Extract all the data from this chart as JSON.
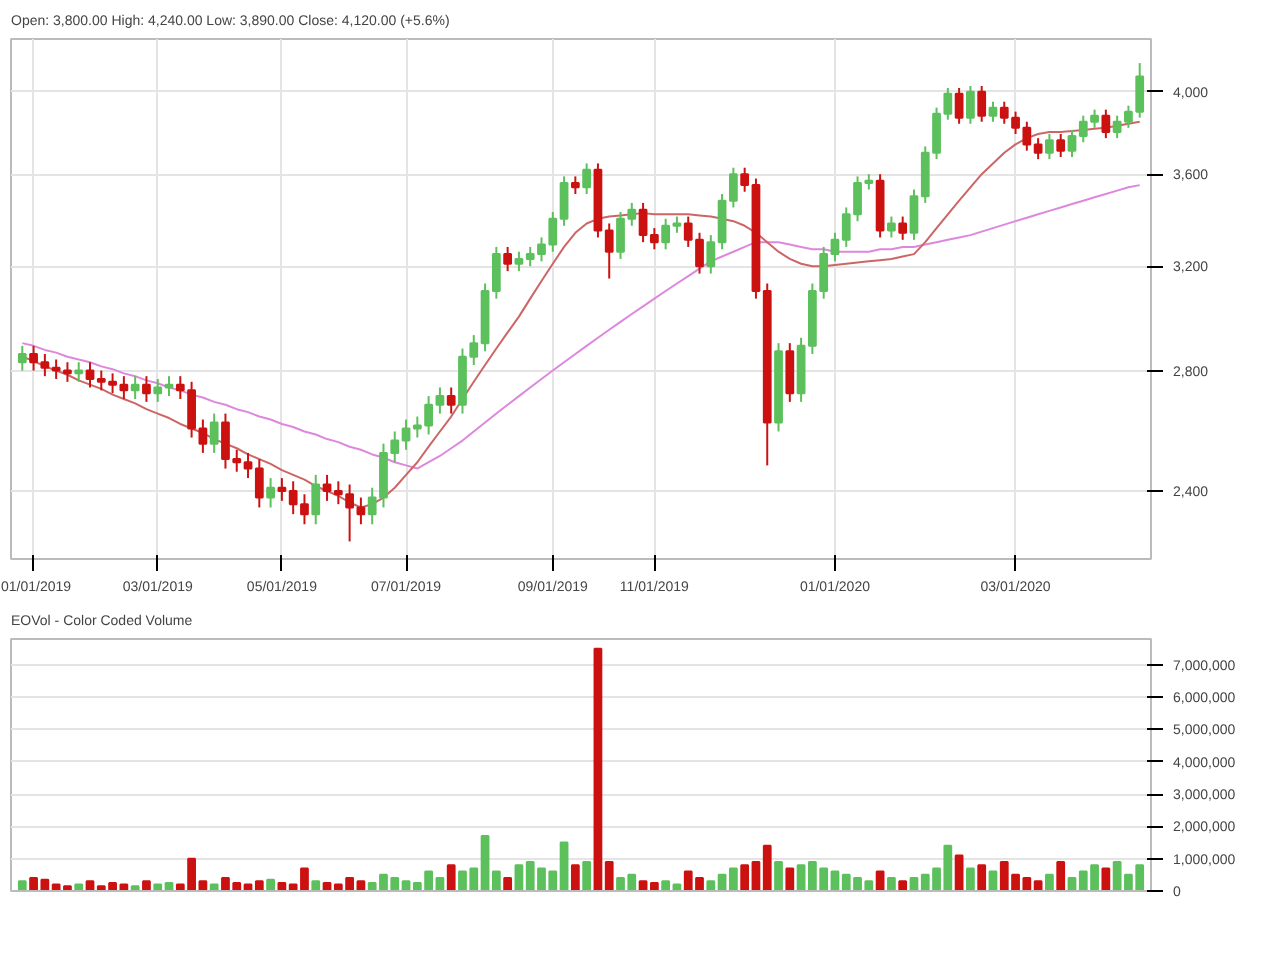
{
  "chart_data": [
    {
      "type": "candlestick",
      "annotations": [
        "Open: 3,800.00  High: 4,240.00  Low: 3,890.00  Close: 4,120.00 (+5.6%)"
      ],
      "categories": [
        null,
        "01/01/2019",
        null,
        null,
        null,
        null,
        null,
        null,
        null,
        null,
        null,
        null,
        "03/01/2019",
        null,
        null,
        null,
        null,
        null,
        null,
        null,
        null,
        null,
        null,
        "05/01/2019",
        null,
        null,
        null,
        null,
        null,
        null,
        null,
        null,
        null,
        null,
        "07/01/2019",
        null,
        null,
        null,
        null,
        null,
        null,
        null,
        null,
        null,
        null,
        null,
        null,
        "09/01/2019",
        null,
        null,
        null,
        null,
        null,
        null,
        null,
        null,
        "11/01/2019",
        null,
        null,
        null,
        null,
        null,
        null,
        null,
        null,
        null,
        null,
        null,
        null,
        null,
        null,
        null,
        "01/01/2020",
        null,
        null,
        null,
        null,
        null,
        null,
        null,
        null,
        null,
        null,
        null,
        null,
        null,
        null,
        null,
        "03/01/2020",
        null,
        null,
        null,
        null,
        null,
        null,
        null,
        null,
        null,
        null,
        null
      ],
      "ohlc": [
        [
          2830,
          2890,
          2800,
          2860
        ],
        [
          2860,
          2890,
          2800,
          2830
        ],
        [
          2830,
          2860,
          2780,
          2810
        ],
        [
          2810,
          2840,
          2770,
          2800
        ],
        [
          2800,
          2830,
          2760,
          2790
        ],
        [
          2790,
          2830,
          2760,
          2800
        ],
        [
          2800,
          2830,
          2740,
          2770
        ],
        [
          2770,
          2800,
          2730,
          2760
        ],
        [
          2760,
          2790,
          2720,
          2750
        ],
        [
          2750,
          2780,
          2700,
          2730
        ],
        [
          2730,
          2780,
          2700,
          2750
        ],
        [
          2750,
          2780,
          2690,
          2720
        ],
        [
          2720,
          2770,
          2690,
          2740
        ],
        [
          2740,
          2780,
          2710,
          2750
        ],
        [
          2750,
          2780,
          2700,
          2730
        ],
        [
          2730,
          2760,
          2570,
          2600
        ],
        [
          2600,
          2630,
          2520,
          2550
        ],
        [
          2550,
          2650,
          2520,
          2620
        ],
        [
          2620,
          2650,
          2470,
          2500
        ],
        [
          2500,
          2530,
          2460,
          2490
        ],
        [
          2490,
          2520,
          2440,
          2470
        ],
        [
          2470,
          2500,
          2350,
          2380
        ],
        [
          2380,
          2440,
          2350,
          2410
        ],
        [
          2410,
          2440,
          2370,
          2400
        ],
        [
          2400,
          2430,
          2330,
          2360
        ],
        [
          2360,
          2390,
          2300,
          2330
        ],
        [
          2330,
          2450,
          2300,
          2420
        ],
        [
          2420,
          2450,
          2370,
          2400
        ],
        [
          2400,
          2430,
          2360,
          2390
        ],
        [
          2390,
          2420,
          2250,
          2350
        ],
        [
          2350,
          2380,
          2300,
          2330
        ],
        [
          2330,
          2410,
          2300,
          2380
        ],
        [
          2380,
          2550,
          2350,
          2520
        ],
        [
          2520,
          2590,
          2490,
          2560
        ],
        [
          2560,
          2630,
          2530,
          2600
        ],
        [
          2600,
          2640,
          2570,
          2610
        ],
        [
          2610,
          2710,
          2580,
          2680
        ],
        [
          2680,
          2740,
          2650,
          2710
        ],
        [
          2710,
          2740,
          2650,
          2680
        ],
        [
          2680,
          2880,
          2650,
          2850
        ],
        [
          2850,
          2930,
          2820,
          2900
        ],
        [
          2900,
          3130,
          2870,
          3100
        ],
        [
          3100,
          3280,
          3070,
          3250
        ],
        [
          3250,
          3280,
          3180,
          3210
        ],
        [
          3210,
          3260,
          3180,
          3230
        ],
        [
          3230,
          3280,
          3200,
          3250
        ],
        [
          3250,
          3320,
          3220,
          3290
        ],
        [
          3290,
          3430,
          3260,
          3400
        ],
        [
          3400,
          3590,
          3370,
          3560
        ],
        [
          3560,
          3590,
          3510,
          3540
        ],
        [
          3540,
          3650,
          3510,
          3620
        ],
        [
          3620,
          3650,
          3320,
          3350
        ],
        [
          3350,
          3380,
          3150,
          3260
        ],
        [
          3260,
          3430,
          3230,
          3400
        ],
        [
          3400,
          3470,
          3370,
          3440
        ],
        [
          3440,
          3470,
          3300,
          3330
        ],
        [
          3330,
          3360,
          3270,
          3300
        ],
        [
          3300,
          3400,
          3270,
          3370
        ],
        [
          3370,
          3410,
          3340,
          3380
        ],
        [
          3380,
          3410,
          3280,
          3310
        ],
        [
          3310,
          3340,
          3170,
          3200
        ],
        [
          3200,
          3330,
          3170,
          3300
        ],
        [
          3300,
          3510,
          3270,
          3480
        ],
        [
          3480,
          3630,
          3450,
          3600
        ],
        [
          3600,
          3630,
          3520,
          3550
        ],
        [
          3550,
          3580,
          3070,
          3100
        ],
        [
          3100,
          3130,
          2480,
          2620
        ],
        [
          2620,
          2900,
          2590,
          2870
        ],
        [
          2870,
          2900,
          2690,
          2720
        ],
        [
          2720,
          2920,
          2690,
          2890
        ],
        [
          2890,
          3130,
          2860,
          3100
        ],
        [
          3100,
          3280,
          3070,
          3250
        ],
        [
          3250,
          3340,
          3220,
          3310
        ],
        [
          3310,
          3450,
          3280,
          3420
        ],
        [
          3420,
          3590,
          3390,
          3560
        ],
        [
          3560,
          3600,
          3530,
          3570
        ],
        [
          3570,
          3600,
          3320,
          3350
        ],
        [
          3350,
          3410,
          3320,
          3380
        ],
        [
          3380,
          3410,
          3310,
          3340
        ],
        [
          3340,
          3530,
          3310,
          3500
        ],
        [
          3500,
          3730,
          3470,
          3700
        ],
        [
          3700,
          3920,
          3670,
          3890
        ],
        [
          3890,
          4020,
          3860,
          3990
        ],
        [
          3990,
          4020,
          3840,
          3870
        ],
        [
          3870,
          4030,
          3840,
          4000
        ],
        [
          4000,
          4030,
          3850,
          3880
        ],
        [
          3880,
          3950,
          3850,
          3920
        ],
        [
          3920,
          3950,
          3840,
          3870
        ],
        [
          3870,
          3900,
          3790,
          3820
        ],
        [
          3820,
          3850,
          3710,
          3740
        ],
        [
          3740,
          3770,
          3670,
          3700
        ],
        [
          3700,
          3790,
          3670,
          3760
        ],
        [
          3760,
          3790,
          3680,
          3710
        ],
        [
          3710,
          3810,
          3680,
          3780
        ],
        [
          3780,
          3880,
          3750,
          3850
        ],
        [
          3850,
          3910,
          3820,
          3880
        ],
        [
          3880,
          3910,
          3770,
          3800
        ],
        [
          3800,
          3880,
          3770,
          3850
        ],
        [
          3850,
          3930,
          3820,
          3900
        ],
        [
          3900,
          4150,
          3870,
          4080
        ]
      ],
      "colors": [
        "#5cc05c",
        "#cc1111",
        "#cc1111",
        "#cc1111",
        "#cc1111",
        "#5cc05c",
        "#cc1111",
        "#cc1111",
        "#cc1111",
        "#cc1111",
        "#5cc05c",
        "#cc1111",
        "#5cc05c",
        "#5cc05c",
        "#cc1111",
        "#cc1111",
        "#cc1111",
        "#5cc05c",
        "#cc1111",
        "#cc1111",
        "#cc1111",
        "#cc1111",
        "#5cc05c",
        "#cc1111",
        "#cc1111",
        "#cc1111",
        "#5cc05c",
        "#cc1111",
        "#cc1111",
        "#cc1111",
        "#cc1111",
        "#5cc05c",
        "#5cc05c",
        "#5cc05c",
        "#5cc05c",
        "#5cc05c",
        "#5cc05c",
        "#5cc05c",
        "#cc1111",
        "#5cc05c",
        "#5cc05c",
        "#5cc05c",
        "#5cc05c",
        "#cc1111",
        "#5cc05c",
        "#5cc05c",
        "#5cc05c",
        "#5cc05c",
        "#5cc05c",
        "#cc1111",
        "#5cc05c",
        "#cc1111",
        "#cc1111",
        "#5cc05c",
        "#5cc05c",
        "#cc1111",
        "#cc1111",
        "#5cc05c",
        "#5cc05c",
        "#cc1111",
        "#cc1111",
        "#5cc05c",
        "#5cc05c",
        "#5cc05c",
        "#cc1111",
        "#cc1111",
        "#cc1111",
        "#5cc05c",
        "#cc1111",
        "#5cc05c",
        "#5cc05c",
        "#5cc05c",
        "#5cc05c",
        "#5cc05c",
        "#5cc05c",
        "#5cc05c",
        "#cc1111",
        "#5cc05c",
        "#cc1111",
        "#5cc05c",
        "#5cc05c",
        "#5cc05c",
        "#5cc05c",
        "#cc1111",
        "#5cc05c",
        "#cc1111",
        "#5cc05c",
        "#cc1111",
        "#cc1111",
        "#cc1111",
        "#cc1111",
        "#5cc05c",
        "#cc1111",
        "#5cc05c",
        "#5cc05c",
        "#5cc05c",
        "#cc1111",
        "#5cc05c",
        "#5cc05c",
        "#5cc05c"
      ],
      "series": [
        {
          "type": "line",
          "color": "#dd88dd",
          "values": [
            2900,
            2890,
            2875,
            2865,
            2850,
            2840,
            2830,
            2815,
            2805,
            2790,
            2780,
            2765,
            2755,
            2740,
            2730,
            2715,
            2705,
            2690,
            2680,
            2665,
            2655,
            2640,
            2630,
            2615,
            2605,
            2590,
            2580,
            2565,
            2555,
            2540,
            2530,
            2515,
            2505,
            2490,
            2480,
            2470,
            2490,
            2510,
            2535,
            2560,
            2590,
            2620,
            2650,
            2680,
            2710,
            2740,
            2770,
            2800,
            2830,
            2860,
            2890,
            2920,
            2950,
            2980,
            3010,
            3040,
            3070,
            3100,
            3130,
            3160,
            3190,
            3220,
            3240,
            3260,
            3280,
            3300,
            3300,
            3300,
            3290,
            3280,
            3270,
            3270,
            3260,
            3260,
            3260,
            3260,
            3270,
            3270,
            3280,
            3280,
            3290,
            3300,
            3310,
            3320,
            3330,
            3345,
            3360,
            3375,
            3390,
            3405,
            3420,
            3435,
            3450,
            3465,
            3480,
            3495,
            3510,
            3525,
            3540,
            3550
          ]
        },
        {
          "type": "line",
          "color": "#cc6666",
          "values": [
            2850,
            2835,
            2815,
            2800,
            2785,
            2765,
            2750,
            2735,
            2715,
            2700,
            2685,
            2665,
            2650,
            2635,
            2615,
            2600,
            2585,
            2565,
            2550,
            2535,
            2515,
            2500,
            2485,
            2465,
            2450,
            2435,
            2415,
            2400,
            2385,
            2365,
            2350,
            2360,
            2380,
            2410,
            2450,
            2490,
            2540,
            2590,
            2640,
            2700,
            2760,
            2820,
            2880,
            2940,
            3000,
            3070,
            3140,
            3210,
            3280,
            3340,
            3380,
            3400,
            3410,
            3415,
            3420,
            3425,
            3420,
            3420,
            3420,
            3420,
            3415,
            3410,
            3400,
            3390,
            3370,
            3340,
            3300,
            3260,
            3230,
            3210,
            3200,
            3200,
            3205,
            3210,
            3215,
            3220,
            3225,
            3230,
            3240,
            3250,
            3300,
            3360,
            3420,
            3480,
            3540,
            3600,
            3650,
            3700,
            3740,
            3770,
            3790,
            3800,
            3800,
            3805,
            3810,
            3815,
            3820,
            3830,
            3840,
            3850
          ]
        }
      ],
      "log": "y",
      "ylim": [
        2200,
        4280
      ],
      "yticks": [
        {
          "value": 2400,
          "label": "2,400"
        },
        {
          "value": 2800,
          "label": "2,800"
        },
        {
          "value": 3200,
          "label": "3,200"
        },
        {
          "value": 3600,
          "label": "3,600"
        },
        {
          "value": 4000,
          "label": "4,000"
        }
      ],
      "grid": true
    },
    {
      "type": "bar",
      "title": "EOVol - Color Coded Volume",
      "tick_labels": "y",
      "categories": [
        null,
        null,
        null,
        null,
        null,
        null,
        null,
        null,
        null,
        null,
        null,
        null,
        null,
        null,
        null,
        null,
        null,
        null,
        null,
        null,
        null,
        null,
        null,
        null,
        null,
        null,
        null,
        null,
        null,
        null,
        null,
        null,
        null,
        null,
        null,
        null,
        null,
        null,
        null,
        null,
        null,
        null,
        null,
        null,
        null,
        null,
        null,
        null,
        null,
        null,
        null,
        null,
        null,
        null,
        null,
        null,
        null,
        null,
        null,
        null,
        null,
        null,
        null,
        null,
        null,
        null,
        null,
        null,
        null,
        null,
        null,
        null,
        null,
        null,
        null,
        null,
        null,
        null,
        null,
        null,
        null,
        null,
        null,
        null,
        null,
        null,
        null,
        null,
        null,
        null,
        null,
        null,
        null,
        null,
        null,
        null,
        null,
        null,
        null,
        null
      ],
      "values": [
        300000,
        400000,
        350000,
        200000,
        150000,
        200000,
        300000,
        150000,
        250000,
        200000,
        150000,
        300000,
        200000,
        250000,
        200000,
        1000000,
        300000,
        200000,
        400000,
        250000,
        200000,
        300000,
        350000,
        250000,
        200000,
        700000,
        300000,
        250000,
        200000,
        400000,
        300000,
        250000,
        500000,
        400000,
        300000,
        250000,
        600000,
        400000,
        800000,
        600000,
        700000,
        1700000,
        600000,
        400000,
        800000,
        900000,
        700000,
        600000,
        1500000,
        800000,
        900000,
        7500000,
        900000,
        400000,
        500000,
        300000,
        250000,
        300000,
        200000,
        600000,
        400000,
        300000,
        500000,
        700000,
        800000,
        900000,
        1400000,
        900000,
        700000,
        800000,
        900000,
        700000,
        600000,
        500000,
        400000,
        300000,
        600000,
        400000,
        300000,
        400000,
        500000,
        700000,
        1400000,
        1100000,
        700000,
        800000,
        600000,
        900000,
        500000,
        400000,
        300000,
        500000,
        900000,
        400000,
        600000,
        800000,
        700000,
        900000,
        500000,
        800000
      ],
      "colors": [
        "#5cc05c",
        "#cc1111",
        "#cc1111",
        "#cc1111",
        "#cc1111",
        "#5cc05c",
        "#cc1111",
        "#cc1111",
        "#cc1111",
        "#cc1111",
        "#5cc05c",
        "#cc1111",
        "#5cc05c",
        "#5cc05c",
        "#cc1111",
        "#cc1111",
        "#cc1111",
        "#5cc05c",
        "#cc1111",
        "#cc1111",
        "#cc1111",
        "#cc1111",
        "#5cc05c",
        "#cc1111",
        "#cc1111",
        "#cc1111",
        "#5cc05c",
        "#cc1111",
        "#cc1111",
        "#cc1111",
        "#cc1111",
        "#5cc05c",
        "#5cc05c",
        "#5cc05c",
        "#5cc05c",
        "#5cc05c",
        "#5cc05c",
        "#5cc05c",
        "#cc1111",
        "#5cc05c",
        "#5cc05c",
        "#5cc05c",
        "#5cc05c",
        "#cc1111",
        "#5cc05c",
        "#5cc05c",
        "#5cc05c",
        "#5cc05c",
        "#5cc05c",
        "#cc1111",
        "#5cc05c",
        "#cc1111",
        "#cc1111",
        "#5cc05c",
        "#5cc05c",
        "#cc1111",
        "#cc1111",
        "#5cc05c",
        "#5cc05c",
        "#cc1111",
        "#cc1111",
        "#5cc05c",
        "#5cc05c",
        "#5cc05c",
        "#cc1111",
        "#cc1111",
        "#cc1111",
        "#5cc05c",
        "#cc1111",
        "#5cc05c",
        "#5cc05c",
        "#5cc05c",
        "#5cc05c",
        "#5cc05c",
        "#5cc05c",
        "#5cc05c",
        "#cc1111",
        "#5cc05c",
        "#cc1111",
        "#5cc05c",
        "#5cc05c",
        "#5cc05c",
        "#5cc05c",
        "#cc1111",
        "#5cc05c",
        "#cc1111",
        "#5cc05c",
        "#cc1111",
        "#cc1111",
        "#cc1111",
        "#cc1111",
        "#5cc05c",
        "#cc1111",
        "#5cc05c",
        "#5cc05c",
        "#5cc05c",
        "#cc1111",
        "#5cc05c",
        "#5cc05c",
        "#5cc05c"
      ],
      "ylim": [
        0,
        7800000
      ],
      "yticks": [
        {
          "value": 0,
          "label": "0"
        },
        {
          "value": 1000000,
          "label": "1,000,000"
        },
        {
          "value": 2000000,
          "label": "2,000,000"
        },
        {
          "value": 3000000,
          "label": "3,000,000"
        },
        {
          "value": 4000000,
          "label": "4,000,000"
        },
        {
          "value": 5000000,
          "label": "5,000,000"
        },
        {
          "value": 6000000,
          "label": "6,000,000"
        },
        {
          "value": 7000000,
          "label": "7,000,000"
        }
      ],
      "grid": true
    }
  ]
}
